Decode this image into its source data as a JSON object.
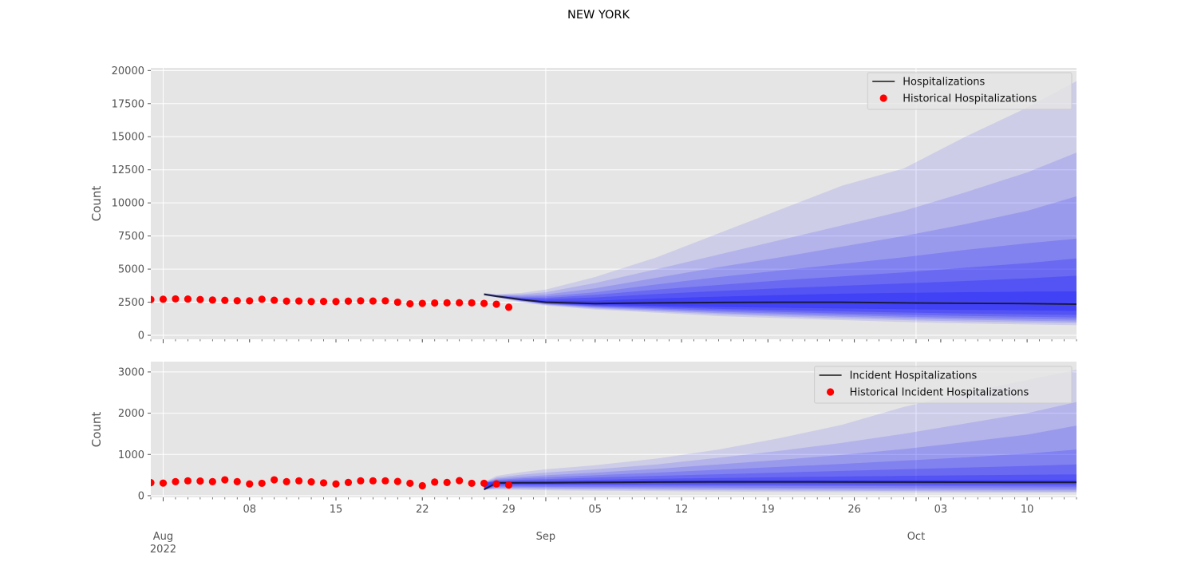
{
  "figure_title": "NEW YORK",
  "colors": {
    "panel_bg": "#e5e5e5",
    "grid": "#ffffff",
    "band": "#0000ff",
    "median": "#1a1a3d",
    "historical": "#ff0000",
    "tick_text": "#555555",
    "legend_bg": "#e5e5e5"
  },
  "x_axis": {
    "type": "date",
    "range": [
      "2022-07-31",
      "2022-10-14"
    ],
    "major_ticks": [
      {
        "date": "2022-08-01",
        "label": "Aug\n2022"
      },
      {
        "date": "2022-09-01",
        "label": "Sep"
      },
      {
        "date": "2022-10-01",
        "label": "Oct"
      }
    ],
    "minor_tick_labels": [
      {
        "date": "2022-08-08",
        "label": "08"
      },
      {
        "date": "2022-08-15",
        "label": "15"
      },
      {
        "date": "2022-08-22",
        "label": "22"
      },
      {
        "date": "2022-08-29",
        "label": "29"
      },
      {
        "date": "2022-09-05",
        "label": "05"
      },
      {
        "date": "2022-09-12",
        "label": "12"
      },
      {
        "date": "2022-09-19",
        "label": "19"
      },
      {
        "date": "2022-09-26",
        "label": "26"
      },
      {
        "date": "2022-10-03",
        "label": "03"
      },
      {
        "date": "2022-10-10",
        "label": "10"
      }
    ]
  },
  "chart_data": [
    {
      "type": "area",
      "ylabel": "Count",
      "ylim": [
        -300,
        20200
      ],
      "yticks": [
        0,
        2500,
        5000,
        7500,
        10000,
        12500,
        15000,
        17500,
        20000
      ],
      "grid": true,
      "legend_placement": "top-right",
      "legend": [
        {
          "label": "Hospitalizations",
          "kind": "line"
        },
        {
          "label": "Historical Hospitalizations",
          "kind": "dot"
        }
      ],
      "historical": {
        "start_date": "2022-07-31",
        "values": [
          2700,
          2720,
          2750,
          2740,
          2700,
          2660,
          2640,
          2610,
          2600,
          2720,
          2650,
          2580,
          2590,
          2550,
          2560,
          2550,
          2580,
          2600,
          2590,
          2600,
          2500,
          2380,
          2410,
          2440,
          2450,
          2460,
          2450,
          2410,
          2350,
          2120
        ]
      },
      "forecast": {
        "dates": [
          "2022-08-27",
          "2022-08-28",
          "2022-08-30",
          "2022-09-01",
          "2022-09-05",
          "2022-09-10",
          "2022-09-15",
          "2022-09-20",
          "2022-09-25",
          "2022-09-30",
          "2022-10-05",
          "2022-10-10",
          "2022-10-14"
        ],
        "median": [
          3100,
          2950,
          2700,
          2500,
          2400,
          2450,
          2480,
          2500,
          2500,
          2450,
          2420,
          2400,
          2350
        ],
        "bands": [
          {
            "lower": [
              3000,
              2850,
              2500,
              2250,
              1950,
              1700,
              1450,
              1300,
              1150,
              1000,
              900,
              820,
              760
            ],
            "upper": [
              3200,
              3100,
              3200,
              3450,
              4400,
              5900,
              7700,
              9500,
              11300,
              12600,
              15000,
              17200,
              19200
            ]
          },
          {
            "lower": [
              3020,
              2880,
              2550,
              2300,
              2020,
              1800,
              1580,
              1420,
              1280,
              1150,
              1050,
              970,
              910
            ],
            "upper": [
              3180,
              3070,
              3100,
              3250,
              3950,
              5000,
              6100,
              7200,
              8300,
              9400,
              10800,
              12300,
              13800
            ]
          },
          {
            "lower": [
              3040,
              2900,
              2580,
              2340,
              2080,
              1880,
              1680,
              1530,
              1400,
              1280,
              1180,
              1100,
              1040
            ],
            "upper": [
              3160,
              3040,
              3000,
              3080,
              3550,
              4350,
              5150,
              5900,
              6700,
              7500,
              8400,
              9400,
              10500
            ]
          },
          {
            "lower": [
              3055,
              2915,
              2610,
              2370,
              2140,
              1960,
              1780,
              1640,
              1520,
              1400,
              1310,
              1240,
              1180
            ],
            "upper": [
              3145,
              3010,
              2920,
              2940,
              3250,
              3850,
              4400,
              4900,
              5400,
              5900,
              6450,
              6950,
              7300
            ]
          },
          {
            "lower": [
              3065,
              2925,
              2630,
              2400,
              2190,
              2040,
              1880,
              1760,
              1650,
              1550,
              1460,
              1400,
              1340
            ],
            "upper": [
              3130,
              2990,
              2850,
              2830,
              3050,
              3450,
              3800,
              4150,
              4450,
              4750,
              5100,
              5450,
              5800
            ]
          },
          {
            "lower": [
              3075,
              2935,
              2650,
              2430,
              2240,
              2120,
              2000,
              1900,
              1810,
              1720,
              1650,
              1590,
              1540
            ],
            "upper": [
              3115,
              2970,
              2790,
              2730,
              2860,
              3120,
              3350,
              3550,
              3740,
              3920,
              4100,
              4300,
              4500
            ]
          },
          {
            "lower": [
              3085,
              2940,
              2670,
              2460,
              2300,
              2220,
              2140,
              2080,
              2030,
              1970,
              1920,
              1880,
              1840
            ],
            "upper": [
              3105,
              2960,
              2740,
              2620,
              2620,
              2780,
              2920,
              3040,
              3140,
              3210,
              3260,
              3300,
              3320
            ]
          }
        ]
      }
    },
    {
      "type": "area",
      "ylabel": "Count",
      "ylim": [
        -40,
        3250
      ],
      "yticks": [
        0,
        1000,
        2000,
        3000
      ],
      "grid": true,
      "legend_placement": "top-right",
      "legend": [
        {
          "label": "Incident Hospitalizations",
          "kind": "line"
        },
        {
          "label": "Historical Incident Hospitalizations",
          "kind": "dot"
        }
      ],
      "historical": {
        "start_date": "2022-07-31",
        "values": [
          315,
          305,
          340,
          360,
          355,
          340,
          385,
          340,
          285,
          300,
          385,
          340,
          360,
          335,
          310,
          285,
          320,
          360,
          360,
          360,
          345,
          300,
          240,
          330,
          320,
          365,
          300,
          300,
          285,
          260
        ]
      },
      "forecast": {
        "dates": [
          "2022-08-27",
          "2022-08-28",
          "2022-08-30",
          "2022-09-01",
          "2022-09-05",
          "2022-09-10",
          "2022-09-15",
          "2022-09-20",
          "2022-09-25",
          "2022-09-30",
          "2022-10-05",
          "2022-10-10",
          "2022-10-14"
        ],
        "median": [
          150,
          310,
          312,
          315,
          322,
          330,
          335,
          335,
          333,
          330,
          328,
          326,
          325
        ],
        "bands": [
          {
            "lower": [
              150,
              150,
              140,
              130,
              120,
              110,
              100,
              90,
              85,
              80,
              75,
              72,
              70
            ],
            "upper": [
              330,
              480,
              570,
              640,
              740,
              900,
              1120,
              1400,
              1720,
              2150,
              2500,
              2800,
              3050
            ]
          },
          {
            "lower": [
              150,
              170,
              165,
              160,
              150,
              140,
              132,
              125,
              118,
              112,
              106,
              100,
              96
            ],
            "upper": [
              320,
              440,
              510,
              560,
              640,
              760,
              920,
              1090,
              1280,
              1500,
              1750,
              2000,
              2270
            ]
          },
          {
            "lower": [
              150,
              190,
              190,
              185,
              178,
              170,
              163,
              156,
              150,
              144,
              138,
              133,
              128
            ],
            "upper": [
              315,
              410,
              460,
              495,
              560,
              650,
              760,
              870,
              990,
              1130,
              1300,
              1480,
              1700
            ]
          },
          {
            "lower": [
              150,
              215,
              215,
              212,
              208,
              203,
              198,
              193,
              188,
              184,
              180,
              176,
              172
            ],
            "upper": [
              312,
              385,
              420,
              445,
              495,
              560,
              630,
              700,
              770,
              850,
              930,
              1020,
              1120
            ]
          },
          {
            "lower": [
              150,
              240,
              242,
              243,
              242,
              240,
              238,
              235,
              232,
              229,
              226,
              223,
              220
            ],
            "upper": [
              312,
              365,
              385,
              400,
              440,
              480,
              520,
              560,
              600,
              640,
              680,
              720,
              760
            ]
          },
          {
            "lower": [
              150,
              262,
              266,
              268,
              270,
              271,
              272,
              271,
              270,
              268,
              266,
              264,
              262
            ],
            "upper": [
              311,
              345,
              355,
              365,
              385,
              410,
              430,
              450,
              465,
              480,
              495,
              505,
              515
            ]
          },
          {
            "lower": [
              150,
              285,
              290,
              293,
              297,
              302,
              305,
              305,
              304,
              302,
              300,
              298,
              296
            ],
            "upper": [
              311,
              330,
              335,
              340,
              348,
              360,
              368,
              372,
              374,
              375,
              376,
              376,
              376
            ]
          }
        ]
      }
    }
  ]
}
